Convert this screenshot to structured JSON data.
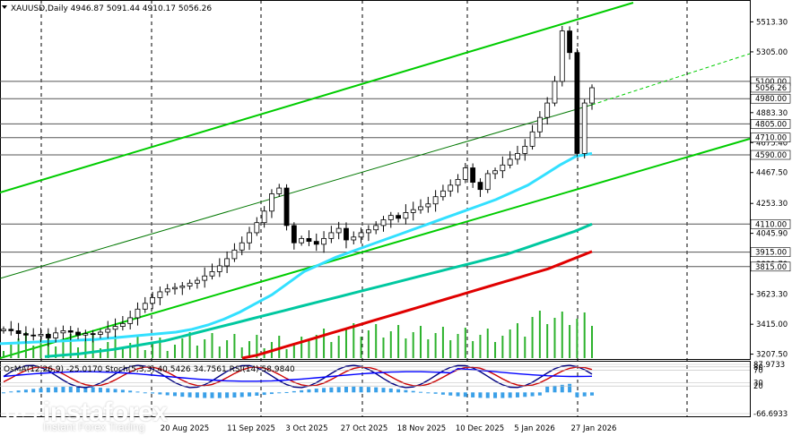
{
  "chart_data": {
    "type": "candlestick",
    "symbol_line": "XAUUSD,Daily  4946.87 5091.44 4910.17 5056.26",
    "price_axis_ticks": [
      "5513.30",
      "5305.00",
      "5096.70",
      "4883.30",
      "4675.40",
      "4467.50",
      "4253.30",
      "4045.90",
      "3831.70",
      "3623.30",
      "3415.00",
      "3207.50"
    ],
    "price_range": [
      3180,
      5640
    ],
    "level_labels": [
      {
        "text": "5100.00",
        "value": 5100
      },
      {
        "text": "4980.00",
        "value": 4980
      },
      {
        "text": "4805.00",
        "value": 4805
      },
      {
        "text": "4710.00",
        "value": 4710
      },
      {
        "text": "4590.00",
        "value": 4590
      },
      {
        "text": "4110.00",
        "value": 4110
      },
      {
        "text": "3915.00",
        "value": 3915
      },
      {
        "text": "3815.00",
        "value": 3815
      }
    ],
    "current_price": {
      "text": "5056.26",
      "value": 5056.26
    },
    "date_labels": [
      "20 Aug 2025",
      "11 Sep 2025",
      "3 Oct 2025",
      "27 Oct 2025",
      "18 Nov 2025",
      "10 Dec 2025",
      "5 Jan 2026",
      "27 Jan 2026"
    ],
    "indicator_line": "OsMA(12,26,9) -25.0170  Stoch(5,3,3) 40.5426 34.7561  RSI(14) 58.9840",
    "indicator_axis_ticks": [
      "87.9733",
      "80",
      "70",
      "30",
      "20",
      "-66.6933"
    ],
    "indicator_range": [
      -66.6933,
      87.9733
    ],
    "close_path": [
      3380,
      3370,
      3350,
      3340,
      3335,
      3345,
      3320,
      3355,
      3370,
      3360,
      3340,
      3350,
      3345,
      3360,
      3380,
      3400,
      3420,
      3460,
      3520,
      3560,
      3600,
      3640,
      3660,
      3670,
      3680,
      3700,
      3720,
      3750,
      3780,
      3820,
      3870,
      3930,
      3980,
      4050,
      4120,
      4200,
      4320,
      4360,
      4100,
      3980,
      4010,
      3990,
      3970,
      4010,
      4050,
      4080,
      4000,
      4020,
      4050,
      4070,
      4100,
      4140,
      4170,
      4150,
      4190,
      4210,
      4230,
      4250,
      4300,
      4340,
      4380,
      4420,
      4500,
      4400,
      4350,
      4460,
      4480,
      4520,
      4560,
      4600,
      4650,
      4750,
      4850,
      4950,
      5100,
      5450,
      5300,
      4600,
      4950,
      5056
    ],
    "ema_fast": [
      3280,
      3285,
      3290,
      3295,
      3300,
      3305,
      3310,
      3320,
      3330,
      3340,
      3350,
      3360,
      3380,
      3410,
      3450,
      3500,
      3560,
      3620,
      3700,
      3780,
      3830,
      3880,
      3920,
      3960,
      4000,
      4040,
      4080,
      4120,
      4160,
      4200,
      4240,
      4280,
      4330,
      4380,
      4450,
      4520,
      4580,
      4600
    ],
    "ema_mid": [
      3190,
      3200,
      3210,
      3225,
      3240,
      3260,
      3280,
      3300,
      3330,
      3360,
      3390,
      3420,
      3450,
      3480,
      3510,
      3540,
      3570,
      3600,
      3630,
      3660,
      3690,
      3720,
      3750,
      3780,
      3810,
      3840,
      3870,
      3900,
      3940,
      3980,
      4020,
      4060,
      4110
    ],
    "ema_slow": [
      3180,
      3200,
      3230,
      3260,
      3290,
      3320,
      3350,
      3380,
      3410,
      3440,
      3470,
      3500,
      3530,
      3560,
      3590,
      3620,
      3650,
      3680,
      3710,
      3740,
      3770,
      3800,
      3840,
      3880,
      3920
    ]
  }
}
